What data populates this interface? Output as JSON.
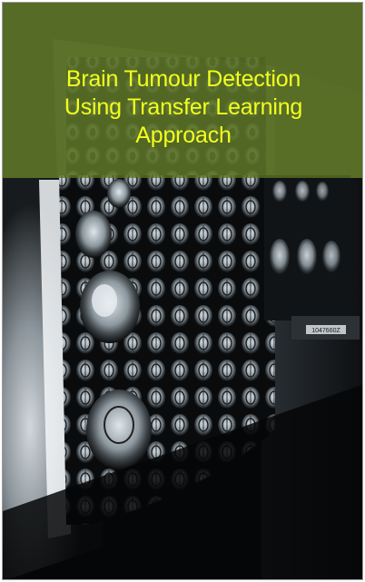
{
  "cover": {
    "title_lines": [
      "Brain Tumour Detection",
      "Using Transfer Learning",
      "Approach"
    ],
    "title_color": "#f2ff1e",
    "band_color": "#5c7422"
  },
  "photo": {
    "icon": "mri-scan-lightbox-photo",
    "film_label": "1047660Z"
  }
}
